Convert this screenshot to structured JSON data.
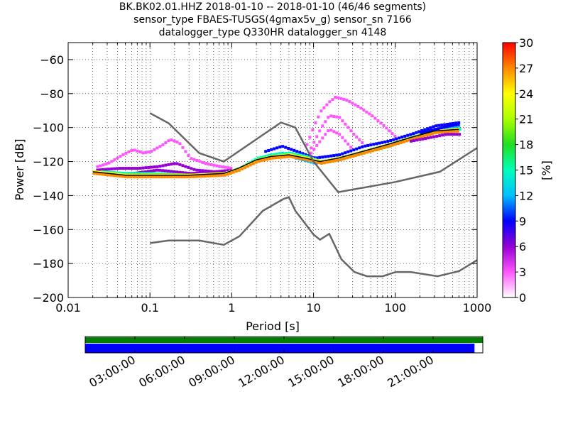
{
  "chart_data": {
    "type": "heatmap",
    "title_lines": [
      "BK.BK02.01.HHZ   2018-01-10 -- 2018-01-10  (46/46 segments)",
      "sensor_type FBAES-TUSGS(4gmax5v_g) sensor_sn 7166",
      "datalogger_type Q330HR datalogger_sn 4148"
    ],
    "xlabel": "Period [s]",
    "ylabel": "Power [dB]",
    "x_scale": "log",
    "xlim": [
      0.01,
      1000
    ],
    "ylim": [
      -200,
      -50
    ],
    "x_ticks": [
      0.01,
      0.1,
      1,
      10,
      100,
      1000
    ],
    "x_tick_labels": [
      "0.01",
      "0.1",
      "1",
      "10",
      "100",
      "1000"
    ],
    "y_ticks": [
      -200,
      -180,
      -160,
      -140,
      -120,
      -100,
      -80,
      -60
    ],
    "y_tick_labels": [
      "−200",
      "−180",
      "−160",
      "−140",
      "−120",
      "−100",
      "−80",
      "−60"
    ],
    "grid": true,
    "colorbar": {
      "label": "[%]",
      "range": [
        0,
        30
      ],
      "ticks": [
        0,
        3,
        6,
        9,
        12,
        15,
        18,
        21,
        24,
        27,
        30
      ],
      "tick_labels": [
        "0",
        "3",
        "6",
        "9",
        "12",
        "15",
        "18",
        "21",
        "24",
        "27",
        "30"
      ],
      "colors": [
        "#ffffff",
        "#ff55ff",
        "#9400d3",
        "#0000ff",
        "#00bfff",
        "#00ffbb",
        "#22dd22",
        "#aaff00",
        "#ffff00",
        "#ff8800",
        "#ff0000"
      ]
    },
    "bands": [
      {
        "pct": 2,
        "points": [
          [
            0.022,
            -123
          ],
          [
            0.03,
            -121
          ],
          [
            0.045,
            -116
          ],
          [
            0.06,
            -113
          ],
          [
            0.08,
            -115
          ],
          [
            0.1,
            -114
          ],
          [
            0.14,
            -110
          ],
          [
            0.17,
            -107
          ],
          [
            0.22,
            -109
          ],
          [
            0.3,
            -118
          ],
          [
            0.45,
            -121
          ],
          [
            0.7,
            -123
          ],
          [
            1,
            -124
          ]
        ]
      },
      {
        "pct": 2,
        "points": [
          [
            8,
            -110
          ],
          [
            10,
            -98
          ],
          [
            12,
            -90
          ],
          [
            15,
            -85
          ],
          [
            18,
            -82
          ],
          [
            25,
            -84
          ],
          [
            35,
            -88
          ],
          [
            50,
            -93
          ],
          [
            70,
            -99
          ],
          [
            100,
            -106
          ]
        ]
      },
      {
        "pct": 3,
        "points": [
          [
            9,
            -112
          ],
          [
            12,
            -100
          ],
          [
            15,
            -93
          ],
          [
            20,
            -94
          ],
          [
            30,
            -104
          ],
          [
            40,
            -110
          ]
        ]
      },
      {
        "pct": 4,
        "points": [
          [
            9,
            -115
          ],
          [
            12,
            -107
          ],
          [
            15,
            -101
          ],
          [
            20,
            -104
          ],
          [
            28,
            -112
          ]
        ]
      },
      {
        "pct": 5,
        "points": [
          [
            0.022,
            -125
          ],
          [
            0.04,
            -124
          ],
          [
            0.07,
            -124
          ],
          [
            0.12,
            -123
          ],
          [
            0.2,
            -121
          ],
          [
            0.35,
            -125
          ],
          [
            0.6,
            -126
          ],
          [
            1,
            -125
          ]
        ]
      },
      {
        "pct": 7,
        "points": [
          [
            0.03,
            -127
          ],
          [
            0.06,
            -127
          ],
          [
            0.12,
            -125
          ],
          [
            0.3,
            -127
          ],
          [
            0.8,
            -126
          ]
        ]
      },
      {
        "pct": 10,
        "points": [
          [
            2.5,
            -114
          ],
          [
            4,
            -111
          ],
          [
            6,
            -114
          ],
          [
            10,
            -118
          ],
          [
            20,
            -116
          ],
          [
            40,
            -111
          ],
          [
            80,
            -108
          ],
          [
            150,
            -104
          ],
          [
            300,
            -99
          ],
          [
            600,
            -97
          ]
        ]
      },
      {
        "pct": 12,
        "points": [
          [
            2.5,
            -117
          ],
          [
            4,
            -115
          ],
          [
            6,
            -118
          ],
          [
            10,
            -121
          ],
          [
            20,
            -119
          ],
          [
            40,
            -114
          ],
          [
            80,
            -111
          ],
          [
            150,
            -106
          ],
          [
            300,
            -101
          ],
          [
            600,
            -99
          ]
        ]
      },
      {
        "pct": 15,
        "points": [
          [
            0.025,
            -126
          ],
          [
            0.05,
            -127
          ],
          [
            0.1,
            -127
          ],
          [
            0.3,
            -128
          ],
          [
            0.8,
            -127
          ],
          [
            1.2,
            -124
          ],
          [
            2,
            -118
          ],
          [
            3,
            -116
          ],
          [
            5,
            -115
          ],
          [
            8,
            -117
          ],
          [
            12,
            -120
          ],
          [
            20,
            -118
          ],
          [
            40,
            -114
          ],
          [
            80,
            -110
          ],
          [
            150,
            -106
          ],
          [
            300,
            -102
          ],
          [
            600,
            -101
          ]
        ]
      },
      {
        "pct": 18,
        "points": [
          [
            0.02,
            -126
          ],
          [
            0.05,
            -128
          ],
          [
            0.1,
            -128
          ],
          [
            0.3,
            -128
          ],
          [
            0.8,
            -127
          ],
          [
            1.2,
            -125
          ],
          [
            2,
            -119
          ],
          [
            3,
            -117
          ],
          [
            5,
            -116
          ],
          [
            8,
            -118
          ],
          [
            12,
            -121
          ],
          [
            20,
            -119
          ],
          [
            40,
            -115
          ],
          [
            80,
            -111
          ],
          [
            150,
            -107
          ],
          [
            300,
            -103
          ],
          [
            600,
            -102
          ]
        ]
      },
      {
        "pct": 24,
        "points": [
          [
            0.02,
            -126
          ],
          [
            0.05,
            -128
          ],
          [
            0.1,
            -128
          ],
          [
            0.3,
            -128
          ],
          [
            0.8,
            -127
          ],
          [
            1.2,
            -124
          ],
          [
            2,
            -119
          ],
          [
            3,
            -117
          ],
          [
            5,
            -116
          ],
          [
            8,
            -118
          ],
          [
            12,
            -120
          ],
          [
            20,
            -118
          ],
          [
            40,
            -114
          ],
          [
            80,
            -110
          ],
          [
            150,
            -106
          ],
          [
            300,
            -102
          ],
          [
            600,
            -101
          ]
        ]
      },
      {
        "pct": 28,
        "points": [
          [
            0.02,
            -127
          ],
          [
            0.05,
            -129
          ],
          [
            0.1,
            -129
          ],
          [
            0.3,
            -129
          ],
          [
            0.8,
            -128
          ],
          [
            1.2,
            -125
          ],
          [
            2,
            -120
          ],
          [
            3,
            -118
          ],
          [
            5,
            -117
          ],
          [
            8,
            -119
          ],
          [
            12,
            -121
          ],
          [
            20,
            -119
          ],
          [
            40,
            -115
          ],
          [
            80,
            -111
          ],
          [
            150,
            -107
          ],
          [
            300,
            -103
          ],
          [
            600,
            -102
          ]
        ]
      },
      {
        "pct": 9,
        "points": [
          [
            200,
            -103
          ],
          [
            300,
            -101
          ],
          [
            450,
            -99
          ],
          [
            600,
            -98
          ]
        ]
      },
      {
        "pct": 5,
        "points": [
          [
            150,
            -108
          ],
          [
            250,
            -106
          ],
          [
            400,
            -104
          ],
          [
            600,
            -104
          ]
        ]
      }
    ],
    "median_line": [
      [
        0.02,
        -126
      ],
      [
        0.05,
        -128
      ],
      [
        0.1,
        -128
      ],
      [
        0.3,
        -128
      ],
      [
        0.8,
        -127
      ],
      [
        1.2,
        -124
      ],
      [
        2,
        -119
      ],
      [
        3,
        -117
      ],
      [
        5,
        -116
      ],
      [
        8,
        -118
      ],
      [
        12,
        -120
      ],
      [
        20,
        -118
      ],
      [
        40,
        -114
      ],
      [
        80,
        -110
      ],
      [
        150,
        -106
      ],
      [
        300,
        -102
      ],
      [
        600,
        -101
      ]
    ],
    "noise_model_high": [
      [
        0.1,
        -91.5
      ],
      [
        0.17,
        -97.5
      ],
      [
        0.4,
        -115
      ],
      [
        0.8,
        -120
      ],
      [
        4,
        -97
      ],
      [
        6,
        -100
      ],
      [
        10,
        -120
      ],
      [
        20,
        -138
      ],
      [
        100,
        -132
      ],
      [
        350,
        -126
      ],
      [
        1000,
        -112
      ]
    ],
    "noise_model_low": [
      [
        0.1,
        -168
      ],
      [
        0.17,
        -166.5
      ],
      [
        0.4,
        -166.5
      ],
      [
        0.8,
        -169
      ],
      [
        1.24,
        -164
      ],
      [
        2.4,
        -149
      ],
      [
        4.3,
        -142
      ],
      [
        5,
        -141
      ],
      [
        6,
        -149
      ],
      [
        10,
        -163
      ],
      [
        12,
        -166
      ],
      [
        15.6,
        -162.5
      ],
      [
        21.9,
        -177.5
      ],
      [
        31.6,
        -185
      ],
      [
        45,
        -187.5
      ],
      [
        70,
        -187.5
      ],
      [
        101,
        -185
      ],
      [
        154,
        -185
      ],
      [
        328,
        -187.5
      ],
      [
        600,
        -184.5
      ],
      [
        1000,
        -178
      ]
    ]
  },
  "timeline": {
    "tick_labels": [
      "03:00:00",
      "06:00:00",
      "09:00:00",
      "12:00:00",
      "15:00:00",
      "18:00:00",
      "21:00:00"
    ],
    "tick_hours": [
      3,
      6,
      9,
      12,
      15,
      18,
      21
    ],
    "span_hours": 24,
    "data_coverage": [
      0,
      23.5
    ],
    "gap_coverage": [
      0,
      24
    ],
    "colors": {
      "data": "#0000ff",
      "gaps": "#008000"
    }
  }
}
